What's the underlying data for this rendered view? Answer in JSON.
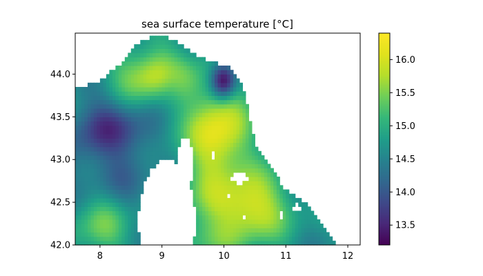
{
  "chart_data": {
    "type": "heatmap",
    "title": "sea surface temperature [°C]",
    "xlabel": "",
    "ylabel": "",
    "xlim": [
      7.6,
      12.2
    ],
    "ylim": [
      42.0,
      44.48
    ],
    "x_ticks": [
      8,
      9,
      10,
      11,
      12
    ],
    "x_tick_labels": [
      "8",
      "9",
      "10",
      "11",
      "12"
    ],
    "y_ticks": [
      42.0,
      42.5,
      43.0,
      43.5,
      44.0
    ],
    "y_tick_labels": [
      "42.0",
      "42.5",
      "43.0",
      "43.5",
      "44.0"
    ],
    "colorbar": {
      "label": "",
      "range": [
        13.2,
        16.4
      ],
      "ticks": [
        13.5,
        14.0,
        14.5,
        15.0,
        15.5,
        16.0
      ],
      "tick_labels": [
        "13.5",
        "14.0",
        "14.5",
        "15.0",
        "15.5",
        "16.0"
      ],
      "colormap": "viridis"
    },
    "grid_step_degrees": 0.05,
    "landmasks": [
      {
        "name": "Corsica",
        "center": [
          9.08,
          42.28
        ],
        "radius": [
          0.46,
          0.72
        ]
      },
      {
        "name": "Corsica cape",
        "center": [
          9.38,
          42.95
        ],
        "radius": [
          0.13,
          0.32
        ]
      },
      {
        "name": "Italy",
        "polygon": [
          [
            10.1,
            44.08
          ],
          [
            10.3,
            43.9
          ],
          [
            10.4,
            43.55
          ],
          [
            10.5,
            43.2
          ],
          [
            10.7,
            42.95
          ],
          [
            11.0,
            42.65
          ],
          [
            11.4,
            42.45
          ],
          [
            11.85,
            42.0
          ],
          [
            12.25,
            42.0
          ],
          [
            12.25,
            44.5
          ],
          [
            10.1,
            44.5
          ]
        ]
      },
      {
        "name": "France",
        "polygon": [
          [
            7.55,
            43.82
          ],
          [
            8.0,
            43.92
          ],
          [
            8.3,
            44.1
          ],
          [
            8.6,
            44.36
          ],
          [
            9.0,
            44.48
          ],
          [
            7.55,
            44.48
          ]
        ]
      },
      {
        "name": "Gulf of Genoa coast",
        "polygon": [
          [
            9.0,
            44.48
          ],
          [
            9.6,
            44.2
          ],
          [
            10.1,
            44.08
          ],
          [
            10.1,
            44.48
          ]
        ]
      }
    ],
    "islands": [
      {
        "name": "Capraia",
        "center": [
          9.84,
          43.05
        ],
        "radius": [
          0.03,
          0.03
        ]
      },
      {
        "name": "Elba",
        "center": [
          10.25,
          42.78
        ],
        "radius": [
          0.16,
          0.06
        ]
      },
      {
        "name": "Pianosa",
        "center": [
          10.08,
          42.58
        ],
        "radius": [
          0.03,
          0.03
        ]
      },
      {
        "name": "Montecristo",
        "center": [
          10.32,
          42.33
        ],
        "radius": [
          0.03,
          0.03
        ]
      },
      {
        "name": "Giglio",
        "center": [
          10.92,
          42.36
        ],
        "radius": [
          0.04,
          0.04
        ]
      },
      {
        "name": "Argentario",
        "center": [
          11.18,
          42.44
        ],
        "radius": [
          0.06,
          0.04
        ]
      }
    ],
    "temperature_features": [
      {
        "center": [
          8.15,
          43.3
        ],
        "sigma": [
          0.45,
          0.28
        ],
        "value": 13.6,
        "weight": 1.0
      },
      {
        "center": [
          8.2,
          42.85
        ],
        "sigma": [
          0.35,
          0.3
        ],
        "value": 14.1,
        "weight": 0.8
      },
      {
        "center": [
          8.0,
          42.2
        ],
        "sigma": [
          0.35,
          0.25
        ],
        "value": 15.4,
        "weight": 0.9
      },
      {
        "center": [
          8.9,
          44.0
        ],
        "sigma": [
          0.45,
          0.22
        ],
        "value": 16.1,
        "weight": 0.9
      },
      {
        "center": [
          9.2,
          43.55
        ],
        "sigma": [
          0.18,
          0.45
        ],
        "value": 14.8,
        "weight": 0.7
      },
      {
        "center": [
          9.9,
          43.3
        ],
        "sigma": [
          0.35,
          0.45
        ],
        "value": 16.2,
        "weight": 1.0
      },
      {
        "center": [
          10.3,
          42.45
        ],
        "sigma": [
          0.5,
          0.3
        ],
        "value": 16.2,
        "weight": 1.0
      },
      {
        "center": [
          10.0,
          43.95
        ],
        "sigma": [
          0.15,
          0.15
        ],
        "value": 13.3,
        "weight": 1.0
      },
      {
        "center": [
          9.7,
          42.15
        ],
        "sigma": [
          0.4,
          0.25
        ],
        "value": 15.5,
        "weight": 0.7
      }
    ],
    "base_temperature": 14.6
  }
}
